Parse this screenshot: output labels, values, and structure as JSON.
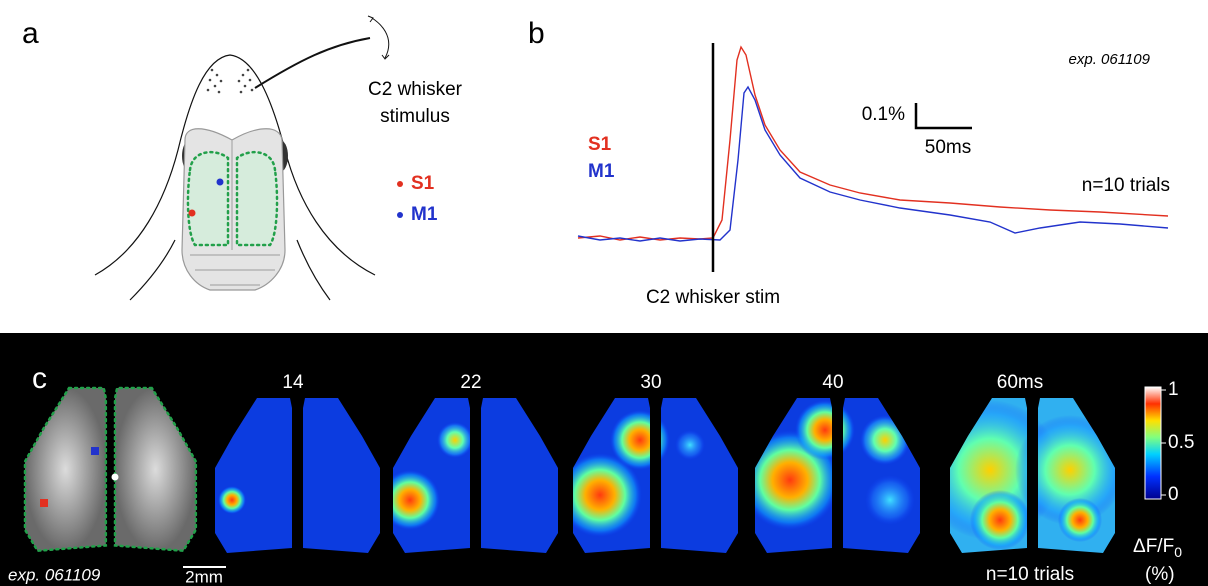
{
  "panel_a": {
    "label": "a",
    "stimulus": [
      "C2 whisker",
      "stimulus"
    ],
    "legend": [
      "S1",
      "M1"
    ]
  },
  "panel_b": {
    "label": "b",
    "experiment": "exp. 061109",
    "scale_y": "0.1%",
    "scale_x": "50ms",
    "legend": [
      "S1",
      "M1"
    ],
    "trials": "n=10 trials",
    "stim_label": "C2 whisker stim"
  },
  "panel_c": {
    "label": "c",
    "times": [
      "14",
      "22",
      "30",
      "40",
      "60ms"
    ],
    "colorbar_ticks": [
      "1",
      "0.5",
      "0"
    ],
    "units": {
      "text": "ΔF/F",
      "subscript": "0"
    },
    "units_suffix": "(%)",
    "experiment": "exp. 061109",
    "scale": "2mm",
    "trials": "n=10 trials"
  }
}
